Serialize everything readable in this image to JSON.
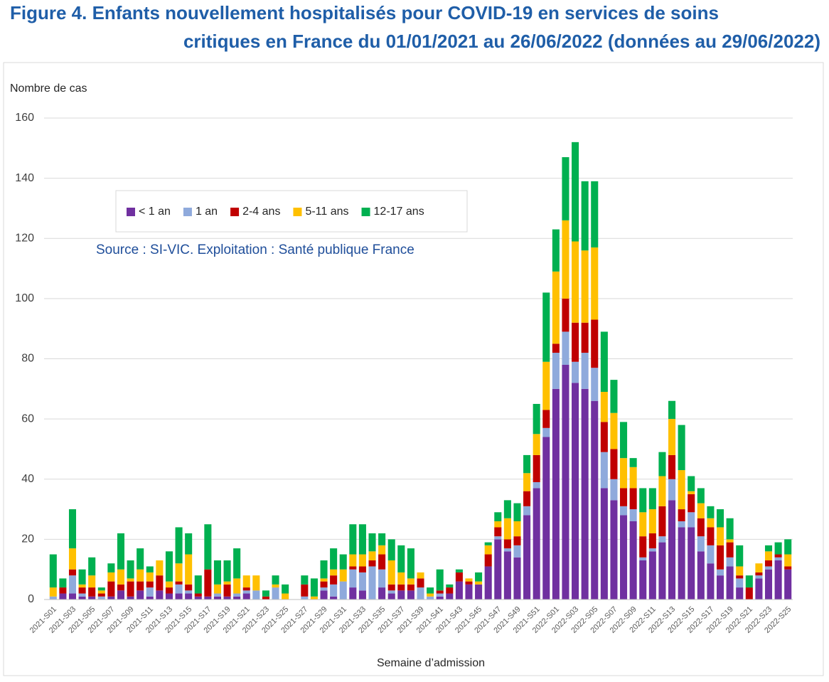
{
  "chart_data": {
    "type": "stacked_bar",
    "title": [
      "Figure 4. Enfants nouvellement hospitalisés pour COVID-19 en services de soins",
      "critiques en France   du 01/01/2021 au 26/06/2022 (données au 29/06/2022)"
    ],
    "source": "Source : SI-VIC. Exploitation : Santé publique France",
    "y_label": "Nombre de cas",
    "x_label": "Semaine d’admission",
    "categories": [
      "2021-S01",
      null,
      "2021-S03",
      null,
      "2021-S05",
      null,
      "2021-S07",
      null,
      "2021-S09",
      null,
      "2021-S11",
      null,
      "2021-S13",
      null,
      "2021-S15",
      null,
      "2021-S17",
      null,
      "2021-S19",
      null,
      "2021-S21",
      null,
      "2021-S23",
      null,
      "2021-S25",
      null,
      "2021-S27",
      null,
      "2021-S29",
      null,
      "2021-S31",
      null,
      "2021-S33",
      null,
      "2021-S35",
      null,
      "2021-S37",
      null,
      "2021-S39",
      null,
      "2021-S41",
      null,
      "2021-S43",
      null,
      "2021-S45",
      null,
      "2021-S47",
      null,
      "2021-S49",
      null,
      "2021-S51",
      null,
      "2022-S01",
      null,
      "2022-S03",
      null,
      "2022-S05",
      null,
      "2022-S07",
      null,
      "2022-S09",
      null,
      "2022-S11",
      null,
      "2022-S13",
      null,
      "2022-S15",
      null,
      "2022-S17",
      null,
      "2022-S19",
      null,
      "2022-S21",
      null,
      "2022-S23",
      null,
      "2022-S25"
    ],
    "series": [
      {
        "name": "< 1 an",
        "color": "#7030a0",
        "values": [
          0,
          2,
          2,
          1,
          1,
          0,
          1,
          3,
          1,
          3,
          1,
          3,
          2,
          2,
          2,
          1,
          1,
          1,
          1,
          1,
          2,
          0,
          0,
          0,
          0,
          0,
          0,
          0,
          3,
          1,
          0,
          4,
          3,
          0,
          4,
          2,
          3,
          3,
          0,
          0,
          1,
          2,
          6,
          5,
          5,
          11,
          20,
          16,
          14,
          28,
          37,
          54,
          70,
          78,
          72,
          70,
          66,
          37,
          33,
          28,
          26,
          13,
          16,
          19,
          33,
          24,
          24,
          16,
          12,
          8,
          11,
          4,
          0,
          7,
          10,
          13,
          10
        ]
      },
      {
        "name": "1 an",
        "color": "#8faadc",
        "values": [
          1,
          0,
          6,
          1,
          0,
          1,
          0,
          0,
          0,
          0,
          3,
          0,
          0,
          3,
          1,
          0,
          0,
          1,
          0,
          1,
          1,
          3,
          0,
          4,
          0,
          0,
          1,
          0,
          1,
          4,
          6,
          6,
          6,
          11,
          6,
          1,
          0,
          0,
          4,
          1,
          1,
          0,
          0,
          0,
          0,
          0,
          1,
          1,
          4,
          3,
          2,
          3,
          12,
          11,
          7,
          12,
          11,
          12,
          7,
          3,
          4,
          1,
          1,
          2,
          7,
          2,
          5,
          5,
          6,
          2,
          3,
          3,
          0,
          1,
          1,
          1,
          0
        ]
      },
      {
        "name": "2-4 ans",
        "color": "#c00000",
        "values": [
          0,
          2,
          2,
          2,
          3,
          1,
          5,
          2,
          5,
          3,
          2,
          5,
          2,
          1,
          2,
          1,
          9,
          0,
          4,
          0,
          1,
          0,
          1,
          0,
          0,
          0,
          4,
          0,
          2,
          3,
          0,
          1,
          2,
          2,
          5,
          2,
          2,
          2,
          3,
          0,
          1,
          2,
          3,
          1,
          0,
          4,
          3,
          3,
          3,
          5,
          9,
          6,
          3,
          11,
          13,
          10,
          16,
          10,
          10,
          6,
          7,
          7,
          5,
          10,
          8,
          4,
          6,
          6,
          6,
          8,
          5,
          1,
          4,
          1,
          2,
          1,
          1
        ]
      },
      {
        "name": "5-11 ans",
        "color": "#ffc000",
        "values": [
          3,
          0,
          7,
          1,
          4,
          1,
          3,
          5,
          1,
          4,
          3,
          5,
          2,
          6,
          10,
          0,
          0,
          3,
          1,
          5,
          4,
          5,
          0,
          1,
          2,
          0,
          0,
          1,
          1,
          2,
          4,
          4,
          4,
          3,
          3,
          8,
          4,
          2,
          2,
          1,
          0,
          0,
          0,
          1,
          1,
          3,
          2,
          7,
          5,
          6,
          7,
          16,
          24,
          26,
          27,
          24,
          24,
          10,
          12,
          10,
          7,
          8,
          8,
          10,
          12,
          13,
          1,
          5,
          3,
          6,
          1,
          3,
          0,
          3,
          3,
          0,
          4
        ]
      },
      {
        "name": "12-17 ans",
        "color": "#00b050",
        "values": [
          11,
          3,
          13,
          5,
          6,
          1,
          3,
          12,
          6,
          7,
          2,
          0,
          10,
          12,
          7,
          6,
          15,
          8,
          7,
          10,
          0,
          0,
          2,
          3,
          3,
          0,
          3,
          6,
          6,
          7,
          5,
          10,
          10,
          6,
          4,
          7,
          9,
          10,
          0,
          2,
          7,
          1,
          1,
          0,
          3,
          1,
          3,
          6,
          6,
          6,
          10,
          23,
          14,
          21,
          33,
          23,
          22,
          20,
          11,
          12,
          3,
          8,
          7,
          8,
          6,
          15,
          5,
          5,
          4,
          6,
          7,
          7,
          4,
          0,
          2,
          4,
          5
        ]
      }
    ],
    "ylim": [
      0,
      160
    ],
    "yticks": [
      0,
      20,
      40,
      60,
      80,
      100,
      120,
      140,
      160
    ],
    "grid": true,
    "legend": "upper left"
  }
}
